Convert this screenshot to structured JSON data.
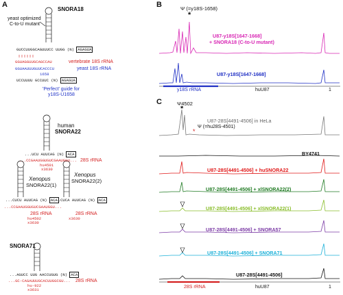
{
  "panels": {
    "A": {
      "letter": "A",
      "snora18": {
        "name": "SNORA18",
        "mutant_note_line1": "yeast optimized",
        "mutant_note_line2": "C-to-U mutant",
        "guide_strand": "GUCCUUGGCAGUUUCC",
        "loop_bits": "UUGG (N)",
        "box": "AGAGUA",
        "vertebrate_seq": "GGUAGGUUGCAGCCAU",
        "vertebrate_label": "vertebrate 18S rRNA",
        "yeast_seq": "GGUAAUUUGUUCACCCU",
        "yeast_label": "yeast 18S rRNA",
        "yeast_num": "1658",
        "lower_strand": "UCCUUUU GCCUUC (N)",
        "lower_box": "AGAGUA",
        "perfect_line1": "'Perfect' guide for",
        "perfect_line2": "y18S-U1658"
      },
      "snora22": {
        "name_line1": "human",
        "name_line2": "SNORA22",
        "strand": "...UCU    AUUCAG (N)",
        "box": "ACA",
        "rrna_seq": "...CCGAAUGGUGUCGAAUGGU...",
        "rrna_label": "28S rRNA",
        "num1": "hu4501",
        "num2": "x3630"
      },
      "xsnora22_1": {
        "name_line1": "Xenopus",
        "name_line2": "SNORA22(1)",
        "strand": "...CUCU  AUUCAG (N)",
        "box": "ACA",
        "rrna_seq": "...CCGAAUGGUGUCGAAUGGU...",
        "rrna_label": "28S rRNA",
        "num1": "hu4502",
        "num2": "x3630"
      },
      "xsnora22_2": {
        "name_line1": "Xenopus",
        "name_line2": "SNORA22(2)",
        "strand": "...CUCA  AUUCAG (N)",
        "box": "ACA",
        "rrna_label": "28S rRNA",
        "num1": "x3630"
      },
      "snora71": {
        "name": "SNORA71",
        "strand": "...AGUCC UUG  AACCUGUG (N)",
        "box": "ACA",
        "rrna_seq": "...GC-CAGAUUUGCACUUGGCGU...",
        "rrna_label": "28S rRNA",
        "num1": "hu-922",
        "num2": "x3631"
      }
    },
    "B": {
      "letter": "B",
      "psi_label": "Ψ (=y18S-1658)",
      "star": "*",
      "trace1_label_line1": "U87-y18S[1647-1668]",
      "trace1_label_line2": "+ SNORA18 (C-to-U mutant)",
      "trace2_label": "U87-y18S[1647-1668]",
      "axis_left": "y18S rRNA",
      "axis_mid": "huU87",
      "axis_right": "1"
    },
    "C": {
      "letter": "C",
      "psi_top": "Ψ4502",
      "star": "*",
      "psi_secondary": "Ψ (=hu28S-4501)",
      "traces": [
        {
          "label": "U87-28S[4491-4506] in HeLa",
          "color": "#777777"
        },
        {
          "label": "BY4741",
          "color": "#111111"
        },
        {
          "label": "U87-28S[4491-4506] + huSNORA22",
          "color": "#e01818"
        },
        {
          "label": "U87-28S[4491-4506] + xlSNORA22(2)",
          "color": "#1f7a22"
        },
        {
          "label": "U87-28S[4491-4506] + xlSNORA22(1)",
          "color": "#89bd2a"
        },
        {
          "label": "U87-28S[4491-4506] + SNORA57",
          "color": "#7b3aa5"
        },
        {
          "label": "U87-28S[4491-4506] + SNORA71",
          "color": "#1bb0d8"
        },
        {
          "label": "U87-28S[4491-4506]",
          "color": "#111111"
        }
      ],
      "axis_left": "28S rRNA",
      "axis_mid": "huU87",
      "axis_right": "1"
    }
  },
  "colors": {
    "magenta": "#d826b4",
    "blue": "#1f2fc4",
    "red": "#d42020"
  }
}
